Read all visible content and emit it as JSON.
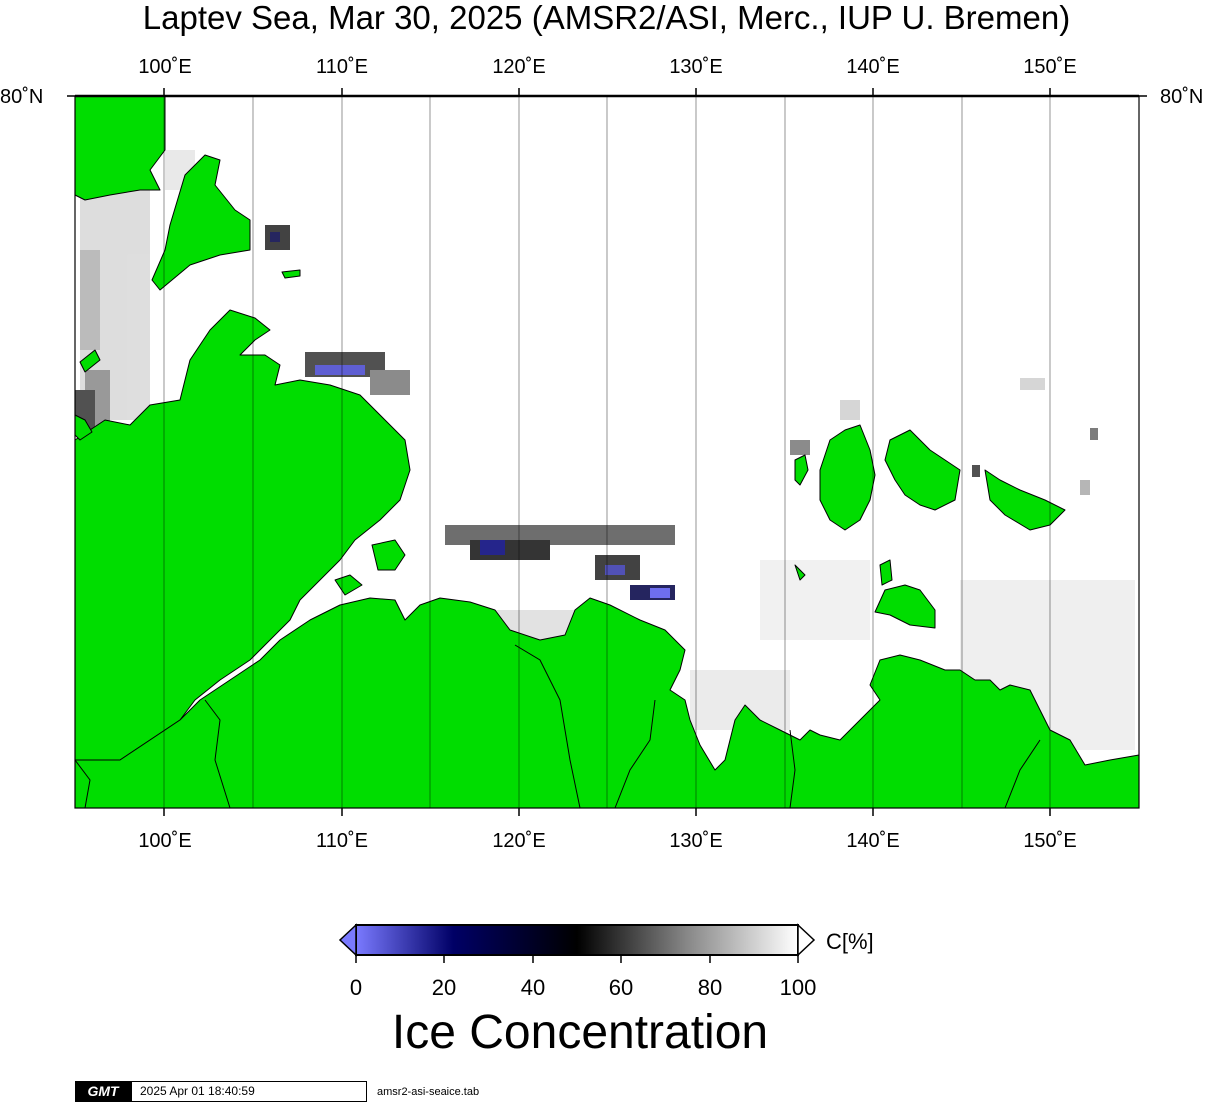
{
  "title": "Laptev Sea, Mar 30, 2025 (AMSR2/ASI, Merc., IUP U. Bremen)",
  "map": {
    "longitude_labels": [
      "100˚E",
      "110˚E",
      "120˚E",
      "130˚E",
      "140˚E",
      "150˚E"
    ],
    "latitude_labels": [
      "80˚N",
      "80˚N"
    ],
    "colors": {
      "land": "#00dd00",
      "ocean_ice_free": "#ffffff",
      "grid": "#000000"
    }
  },
  "colorbar": {
    "unit": "C[%]",
    "ticks": [
      "0",
      "20",
      "40",
      "60",
      "80",
      "100"
    ],
    "title": "Ice Concentration",
    "stops": [
      "#7a7aff",
      "#000066",
      "#000000",
      "#888888",
      "#ffffff"
    ]
  },
  "footer": {
    "logo": "GMT",
    "timestamp": "2025 Apr 01 18:40:59",
    "script": "amsr2-asi-seaice.tab"
  }
}
